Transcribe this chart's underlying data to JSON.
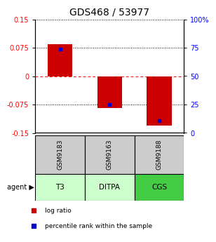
{
  "title": "GDS468 / 53977",
  "samples": [
    "GSM9183",
    "GSM9163",
    "GSM9188"
  ],
  "agents": [
    "T3",
    "DITPA",
    "CGS"
  ],
  "log_ratios": [
    0.085,
    -0.085,
    -0.13
  ],
  "percentile_ranks": [
    74.0,
    25.0,
    11.0
  ],
  "ylim_left": [
    -0.15,
    0.15
  ],
  "ylim_right": [
    0,
    100
  ],
  "yticks_left": [
    -0.15,
    -0.075,
    0,
    0.075,
    0.15
  ],
  "ytick_labels_left": [
    "-0.15",
    "-0.075",
    "0",
    "0.075",
    "0.15"
  ],
  "yticks_right": [
    0,
    25,
    50,
    75,
    100
  ],
  "ytick_labels_right": [
    "0",
    "25",
    "50",
    "75",
    "100%"
  ],
  "bar_color": "#cc0000",
  "marker_color": "#0000cc",
  "agent_colors": [
    "#ccffcc",
    "#ccffcc",
    "#44cc44"
  ],
  "sample_bg": "#cccccc",
  "title_fontsize": 10,
  "tick_fontsize": 7,
  "legend_fontsize": 6.5
}
